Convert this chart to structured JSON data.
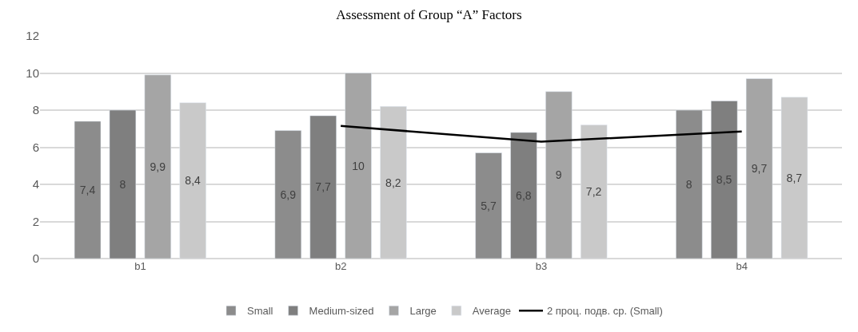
{
  "chart_data": {
    "type": "bar",
    "title": "Assessment of Group “A” Factors",
    "categories": [
      "b1",
      "b2",
      "b3",
      "b4"
    ],
    "series": [
      {
        "name": "Small",
        "color": "#8c8c8c",
        "values": [
          7.4,
          6.9,
          5.7,
          8
        ],
        "value_labels": [
          "7,4",
          "6,9",
          "5,7",
          "8"
        ]
      },
      {
        "name": "Medium-sized",
        "color": "#7f7f7f",
        "values": [
          8,
          7.7,
          6.8,
          8.5
        ],
        "value_labels": [
          "8",
          "7,7",
          "6,8",
          "8,5"
        ]
      },
      {
        "name": "Large",
        "color": "#a5a5a5",
        "values": [
          9.9,
          10,
          9,
          9.7
        ],
        "value_labels": [
          "9,9",
          "10",
          "9",
          "9,7"
        ]
      },
      {
        "name": "Average",
        "color": "#c9c9c9",
        "values": [
          8.4,
          8.2,
          7.2,
          8.7
        ],
        "value_labels": [
          "8,4",
          "8,2",
          "7,2",
          "8,7"
        ]
      },
      {
        "name": "2 проц. подв. ср. (Small)",
        "type": "line",
        "color": "#000000",
        "values": [
          null,
          7.15,
          6.3,
          6.85
        ]
      }
    ],
    "ylim": [
      0,
      12
    ],
    "yticks": [
      0,
      2,
      4,
      6,
      8,
      10,
      12
    ],
    "grid": "y",
    "legend": "bottom",
    "marker": "none",
    "line_style": "solid"
  }
}
